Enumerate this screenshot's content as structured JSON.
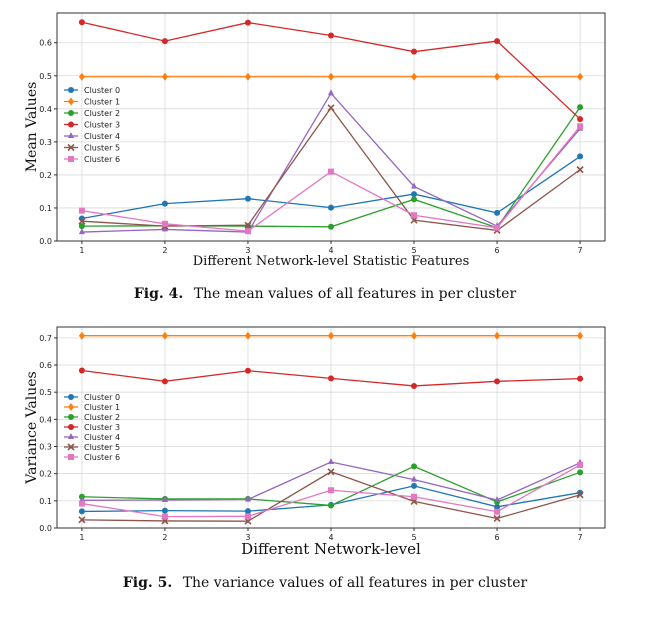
{
  "figures": [
    {
      "number": "Fig. 4.",
      "caption": "The mean values of all features in per cluster"
    },
    {
      "number": "Fig. 5.",
      "caption": "The variance values of all features in per cluster"
    }
  ],
  "chart_data": [
    {
      "type": "line",
      "xlabel": "Different Network-level Statistic Features",
      "ylabel": "Mean Values",
      "x": [
        1,
        2,
        3,
        4,
        5,
        6,
        7
      ],
      "ylim": [
        0,
        0.69
      ],
      "yticks": [
        "0.0",
        "0.1",
        "0.2",
        "0.3",
        "0.4",
        "0.5",
        "0.6"
      ],
      "grid": true,
      "legend_position": "middle-left",
      "series": [
        {
          "name": "Cluster 0",
          "color": "#1f77b4",
          "marker": "circle",
          "values": [
            0.068,
            0.113,
            0.128,
            0.101,
            0.142,
            0.085,
            0.256
          ]
        },
        {
          "name": "Cluster 1",
          "color": "#ff7f0e",
          "marker": "diamond",
          "values": [
            0.497,
            0.497,
            0.497,
            0.497,
            0.497,
            0.497,
            0.497
          ]
        },
        {
          "name": "Cluster 2",
          "color": "#2ca02c",
          "marker": "circle",
          "values": [
            0.045,
            0.046,
            0.045,
            0.043,
            0.126,
            0.04,
            0.405
          ]
        },
        {
          "name": "Cluster 3",
          "color": "#d62728",
          "marker": "circle",
          "values": [
            0.662,
            0.605,
            0.661,
            0.622,
            0.573,
            0.605,
            0.369
          ]
        },
        {
          "name": "Cluster 4",
          "color": "#9467bd",
          "marker": "triangle",
          "values": [
            0.027,
            0.035,
            0.027,
            0.447,
            0.165,
            0.045,
            0.34
          ]
        },
        {
          "name": "Cluster 5",
          "color": "#8c564b",
          "marker": "x",
          "values": [
            0.06,
            0.045,
            0.048,
            0.403,
            0.063,
            0.032,
            0.216
          ]
        },
        {
          "name": "Cluster 6",
          "color": "#e377c2",
          "marker": "square",
          "values": [
            0.092,
            0.052,
            0.03,
            0.21,
            0.078,
            0.04,
            0.347
          ]
        }
      ]
    },
    {
      "type": "line",
      "xlabel": "Different Network-level",
      "ylabel": "Variance Values",
      "x": [
        1,
        2,
        3,
        4,
        5,
        6,
        7
      ],
      "ylim": [
        0,
        0.74
      ],
      "yticks": [
        "0.0",
        "0.1",
        "0.2",
        "0.3",
        "0.4",
        "0.5",
        "0.6",
        "0.7"
      ],
      "grid": true,
      "legend_position": "middle-left",
      "series": [
        {
          "name": "Cluster 0",
          "color": "#1f77b4",
          "marker": "circle",
          "values": [
            0.061,
            0.064,
            0.062,
            0.085,
            0.155,
            0.078,
            0.13
          ]
        },
        {
          "name": "Cluster 1",
          "color": "#ff7f0e",
          "marker": "diamond",
          "values": [
            0.708,
            0.708,
            0.708,
            0.708,
            0.708,
            0.708,
            0.708
          ]
        },
        {
          "name": "Cluster 2",
          "color": "#2ca02c",
          "marker": "circle",
          "values": [
            0.115,
            0.107,
            0.107,
            0.083,
            0.227,
            0.096,
            0.205
          ]
        },
        {
          "name": "Cluster 3",
          "color": "#d62728",
          "marker": "circle",
          "values": [
            0.58,
            0.54,
            0.579,
            0.551,
            0.523,
            0.54,
            0.55
          ]
        },
        {
          "name": "Cluster 4",
          "color": "#9467bd",
          "marker": "triangle",
          "values": [
            0.102,
            0.103,
            0.105,
            0.243,
            0.178,
            0.103,
            0.24
          ]
        },
        {
          "name": "Cluster 5",
          "color": "#8c564b",
          "marker": "x",
          "values": [
            0.03,
            0.026,
            0.025,
            0.207,
            0.098,
            0.035,
            0.122
          ]
        },
        {
          "name": "Cluster 6",
          "color": "#e377c2",
          "marker": "square",
          "values": [
            0.09,
            0.042,
            0.043,
            0.139,
            0.115,
            0.06,
            0.232
          ]
        }
      ]
    }
  ]
}
